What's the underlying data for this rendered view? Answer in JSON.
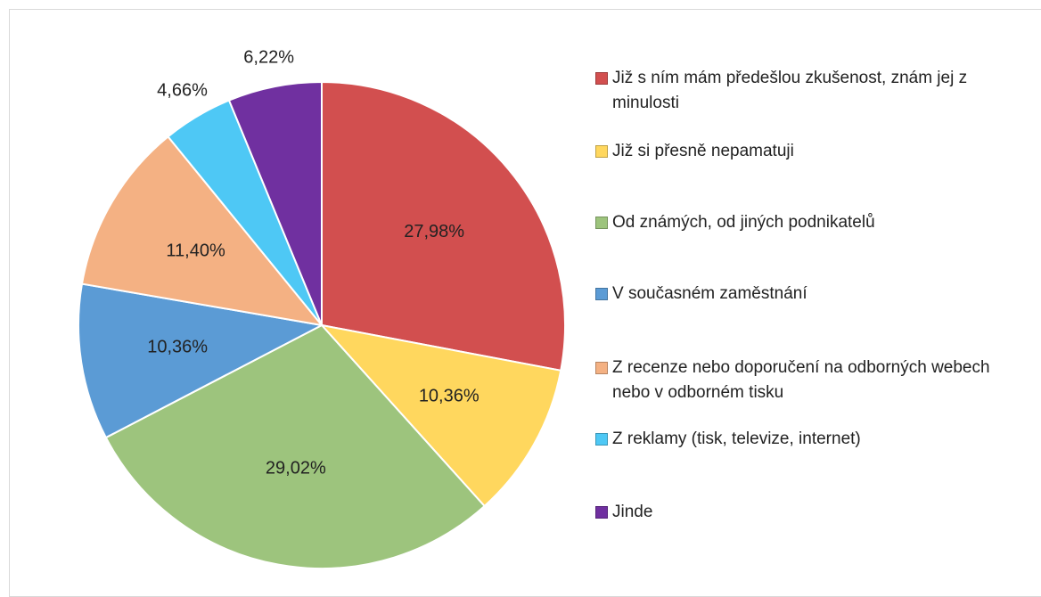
{
  "chart_data": {
    "type": "pie",
    "categories": [
      "Již s ním mám předešlou zkušenost, znám jej z minulosti",
      "Již si přesně nepamatuji",
      "Od známých, od jiných podnikatelů",
      "V současném zaměstnání",
      "Z recenze nebo doporučení na odborných webech nebo v odborném tisku",
      "Z reklamy (tisk, televize, internet)",
      "Jinde"
    ],
    "values": [
      27.98,
      10.36,
      29.02,
      10.36,
      11.4,
      4.66,
      6.22
    ],
    "value_labels": [
      "27,98%",
      "10,36%",
      "29,02%",
      "10,36%",
      "11,40%",
      "4,66%",
      "6,22%"
    ],
    "colors": [
      "#d24f4f",
      "#ffd75e",
      "#9dc47d",
      "#5b9bd5",
      "#f4b183",
      "#4ec8f5",
      "#7030a0"
    ],
    "legend": "right"
  }
}
